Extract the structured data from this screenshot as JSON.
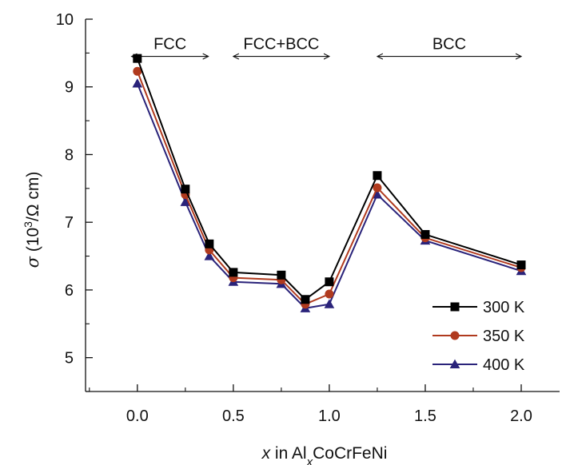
{
  "chart_data": {
    "type": "line",
    "xlabel": {
      "var": "x",
      "mid": " in Al",
      "sub": "x",
      "tail": "CoCrFeNi"
    },
    "ylabel": {
      "sym": "σ",
      "pre": " (10",
      "sup": "3",
      "post": "/Ω cm)"
    },
    "xlim": [
      -0.27,
      2.2
    ],
    "ylim": [
      4.5,
      10
    ],
    "xticks": [
      0.0,
      0.5,
      1.0,
      1.5,
      2.0
    ],
    "xtick_labels": [
      "0.0",
      "0.5",
      "1.0",
      "1.5",
      "2.0"
    ],
    "yticks": [
      5,
      6,
      7,
      8,
      9,
      10
    ],
    "ytick_labels": [
      "5",
      "6",
      "7",
      "8",
      "9",
      "10"
    ],
    "x": [
      0.0,
      0.25,
      0.375,
      0.5,
      0.75,
      0.875,
      1.0,
      1.25,
      1.5,
      2.0
    ],
    "series": [
      {
        "name": "300 K",
        "marker": "square",
        "color": "#000000",
        "values": [
          9.42,
          7.49,
          6.68,
          6.26,
          6.22,
          5.86,
          6.12,
          7.69,
          6.82,
          6.37
        ]
      },
      {
        "name": "350 K",
        "marker": "circle",
        "color": "#b03a1e",
        "values": [
          9.23,
          7.41,
          6.59,
          6.18,
          6.15,
          5.79,
          5.94,
          7.51,
          6.77,
          6.33
        ]
      },
      {
        "name": "400 K",
        "marker": "triangle",
        "color": "#2a237a",
        "values": [
          9.05,
          7.3,
          6.5,
          6.12,
          6.09,
          5.73,
          5.79,
          7.41,
          6.73,
          6.28
        ]
      }
    ],
    "phase_regions": [
      {
        "label": "FCC",
        "from": -0.03,
        "to": 0.37
      },
      {
        "label": "FCC+BCC",
        "from": 0.5,
        "to": 1.0
      },
      {
        "label": "BCC",
        "from": 1.25,
        "to": 2.0
      }
    ],
    "legend_position": "bottom-right",
    "grid": false
  }
}
